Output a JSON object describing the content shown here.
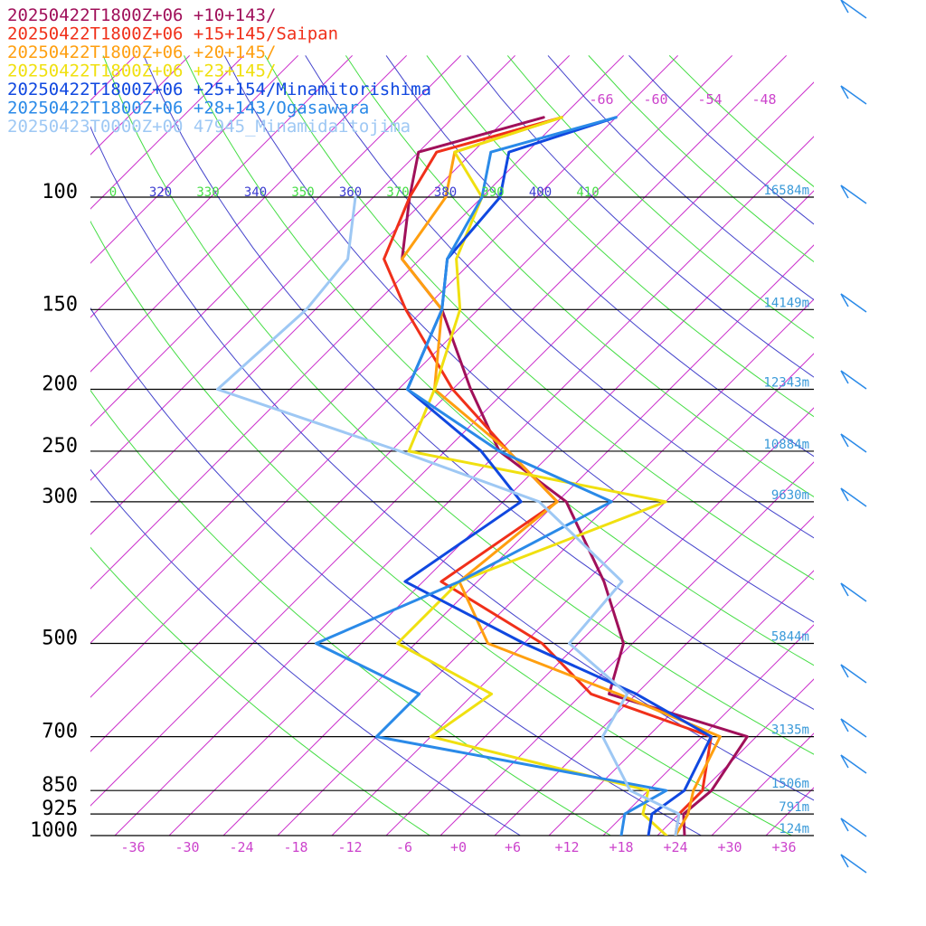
{
  "legend": [
    {
      "label": "20250422T1800Z+06 +10+143/",
      "color": "#a0105a"
    },
    {
      "label": "20250422T1800Z+06 +15+145/Saipan",
      "color": "#f0301a"
    },
    {
      "label": "20250422T1800Z+06 +20+145/",
      "color": "#ff9f10"
    },
    {
      "label": "20250422T1800Z+06 +23+145/",
      "color": "#f0e010"
    },
    {
      "label": "20250422T1800Z+06 +25+154/Minamitorishima",
      "color": "#1048e0"
    },
    {
      "label": "20250422T1800Z+06 +28+143/Ogasawara",
      "color": "#2a8ae8"
    },
    {
      "label": "20250423T0000Z+00 47945_Minamidaitojima",
      "color": "#9ec8f4"
    }
  ],
  "chart_data": {
    "type": "line",
    "subtype": "skew-t",
    "title": "",
    "xlabel": "",
    "ylabel": "",
    "pressure_levels": [
      {
        "p": 100,
        "label": "100",
        "height": "16584m"
      },
      {
        "p": 150,
        "label": "150",
        "height": "14149m"
      },
      {
        "p": 200,
        "label": "200",
        "height": "12343m"
      },
      {
        "p": 250,
        "label": "250",
        "height": "10884m"
      },
      {
        "p": 300,
        "label": "300",
        "height": "9630m"
      },
      {
        "p": 500,
        "label": "500",
        "height": "5844m"
      },
      {
        "p": 700,
        "label": "700",
        "height": "3135m"
      },
      {
        "p": 850,
        "label": "850",
        "height": "1506m"
      },
      {
        "p": 925,
        "label": "925",
        "height": "791m"
      },
      {
        "p": 1000,
        "label": "1000",
        "height": "124m"
      }
    ],
    "temperature_ticks": [
      {
        "t": -36,
        "label": "-36"
      },
      {
        "t": -30,
        "label": "-30"
      },
      {
        "t": -24,
        "label": "-24"
      },
      {
        "t": -18,
        "label": "-18"
      },
      {
        "t": -12,
        "label": "-12"
      },
      {
        "t": -6,
        "label": "-6"
      },
      {
        "t": 0,
        "label": "+0"
      },
      {
        "t": 6,
        "label": "+6"
      },
      {
        "t": 12,
        "label": "+12"
      },
      {
        "t": 18,
        "label": "+18"
      },
      {
        "t": 24,
        "label": "+24"
      },
      {
        "t": 30,
        "label": "+30"
      },
      {
        "t": 36,
        "label": "+36"
      }
    ],
    "theta_labels": [
      {
        "theta": 310,
        "label": "0",
        "color": "#44dd44"
      },
      {
        "theta": 320,
        "label": "320",
        "color": "#3a3ad0"
      },
      {
        "theta": 330,
        "label": "330",
        "color": "#44dd44"
      },
      {
        "theta": 340,
        "label": "340",
        "color": "#3a3ad0"
      },
      {
        "theta": 350,
        "label": "350",
        "color": "#44dd44"
      },
      {
        "theta": 360,
        "label": "360",
        "color": "#3a3ad0"
      },
      {
        "theta": 370,
        "label": "370",
        "color": "#44dd44"
      },
      {
        "theta": 380,
        "label": "380",
        "color": "#3a3ad0"
      },
      {
        "theta": 390,
        "label": "390",
        "color": "#44dd44"
      },
      {
        "theta": 400,
        "label": "400",
        "color": "#3a3ad0"
      },
      {
        "theta": 410,
        "label": "410",
        "color": "#44dd44"
      }
    ],
    "mixing_labels": [
      "-66",
      "-60",
      "-54",
      "-48"
    ],
    "series": [
      {
        "name": "20250422T1800Z+06 +10+143/",
        "color": "#a0105a",
        "points": [
          [
            1000,
            25.0
          ],
          [
            925,
            22.5
          ],
          [
            850,
            23.0
          ],
          [
            700,
            21.0
          ],
          [
            600,
            1.0
          ],
          [
            500,
            -3.0
          ],
          [
            400,
            -12.0
          ],
          [
            300,
            -25.0
          ],
          [
            250,
            -38.0
          ],
          [
            200,
            -48.0
          ],
          [
            150,
            -60.0
          ],
          [
            125,
            -70.0
          ],
          [
            100,
            -76.0
          ],
          [
            85,
            -80.0
          ],
          [
            75,
            -70.0
          ]
        ]
      },
      {
        "name": "20250422T1800Z+06 +15+145/Saipan",
        "color": "#f0301a",
        "points": [
          [
            1000,
            24.0
          ],
          [
            925,
            22.0
          ],
          [
            850,
            22.0
          ],
          [
            700,
            17.0
          ],
          [
            600,
            -1.0
          ],
          [
            500,
            -12.0
          ],
          [
            400,
            -30.0
          ],
          [
            300,
            -26.0
          ],
          [
            250,
            -37.0
          ],
          [
            200,
            -50.0
          ],
          [
            150,
            -64.0
          ],
          [
            125,
            -72.0
          ],
          [
            100,
            -76.0
          ],
          [
            85,
            -78.0
          ],
          [
            75,
            -68.0
          ]
        ]
      },
      {
        "name": "20250422T1800Z+06 +20+145/",
        "color": "#ff9f10",
        "points": [
          [
            1000,
            24.0
          ],
          [
            925,
            23.0
          ],
          [
            850,
            21.0
          ],
          [
            700,
            18.0
          ],
          [
            600,
            2.0
          ],
          [
            500,
            -18.0
          ],
          [
            400,
            -28.0
          ],
          [
            300,
            -26.0
          ],
          [
            250,
            -37.0
          ],
          [
            200,
            -52.0
          ],
          [
            150,
            -60.0
          ],
          [
            125,
            -70.0
          ],
          [
            100,
            -72.0
          ],
          [
            85,
            -76.0
          ],
          [
            75,
            -68.0
          ]
        ]
      },
      {
        "name": "20250422T1800Z+06 +23+145/",
        "color": "#f0e010",
        "points": [
          [
            1000,
            23.0
          ],
          [
            925,
            18.0
          ],
          [
            850,
            16.0
          ],
          [
            700,
            -14.0
          ],
          [
            600,
            -12.0
          ],
          [
            500,
            -28.0
          ],
          [
            400,
            -28.0
          ],
          [
            300,
            -14.0
          ],
          [
            250,
            -48.0
          ],
          [
            200,
            -52.0
          ],
          [
            150,
            -58.0
          ],
          [
            125,
            -64.0
          ],
          [
            100,
            -68.0
          ],
          [
            85,
            -76.0
          ],
          [
            75,
            -68.0
          ]
        ]
      },
      {
        "name": "20250422T1800Z+06 +25+154/Minamitorishima",
        "color": "#1048e0",
        "points": [
          [
            1000,
            21.0
          ],
          [
            925,
            19.0
          ],
          [
            850,
            20.0
          ],
          [
            700,
            17.0
          ],
          [
            600,
            4.0
          ],
          [
            500,
            -14.0
          ],
          [
            400,
            -34.0
          ],
          [
            300,
            -30.0
          ],
          [
            250,
            -40.0
          ],
          [
            200,
            -55.0
          ],
          [
            150,
            -60.0
          ],
          [
            125,
            -65.0
          ],
          [
            100,
            -66.0
          ],
          [
            85,
            -70.0
          ],
          [
            75,
            -62.0
          ]
        ]
      },
      {
        "name": "20250422T1800Z+06 +28+143/Ogasawara",
        "color": "#2a8ae8",
        "points": [
          [
            1000,
            18.0
          ],
          [
            925,
            16.0
          ],
          [
            850,
            18.0
          ],
          [
            700,
            -20.0
          ],
          [
            600,
            -20.0
          ],
          [
            500,
            -37.0
          ],
          [
            400,
            -28.0
          ],
          [
            300,
            -20.0
          ],
          [
            250,
            -38.0
          ],
          [
            200,
            -55.0
          ],
          [
            150,
            -60.0
          ],
          [
            125,
            -65.0
          ],
          [
            100,
            -68.0
          ],
          [
            85,
            -72.0
          ],
          [
            75,
            -62.0
          ]
        ]
      },
      {
        "name": "20250423T0000Z+00 47945_Minamidaitojima",
        "color": "#9ec8f4",
        "points": [
          [
            1000,
            24.0
          ],
          [
            925,
            22.0
          ],
          [
            850,
            14.0
          ],
          [
            700,
            5.0
          ],
          [
            600,
            3.0
          ],
          [
            500,
            -9.0
          ],
          [
            400,
            -10.0
          ],
          [
            300,
            -28.0
          ],
          [
            250,
            -49.0
          ],
          [
            200,
            -76.0
          ],
          [
            150,
            -75.0
          ],
          [
            125,
            -76.0
          ],
          [
            100,
            -82.0
          ]
        ]
      }
    ]
  }
}
